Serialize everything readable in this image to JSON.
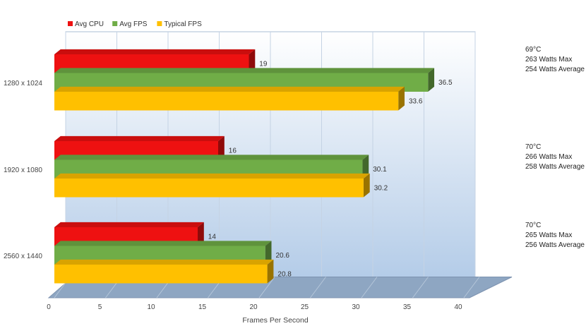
{
  "chart_data": {
    "type": "bar",
    "orientation": "horizontal",
    "categories": [
      "1280 x 1024",
      "1920 x 1080",
      "2560 x 1440"
    ],
    "series": [
      {
        "name": "Avg CPU",
        "color": "#ee1111",
        "values": [
          19,
          16,
          14
        ]
      },
      {
        "name": "Avg FPS",
        "color": "#70ad47",
        "values": [
          36.5,
          30.1,
          20.6
        ]
      },
      {
        "name": "Typical FPS",
        "color": "#ffc000",
        "values": [
          33.6,
          30.2,
          20.8
        ]
      }
    ],
    "data_labels": [
      [
        "19",
        "16",
        "14"
      ],
      [
        "36.5",
        "30.1",
        "20.6"
      ],
      [
        "33.6",
        "30.2",
        "20.8"
      ]
    ],
    "xlabel": "Frames Per Second",
    "xlim": [
      0,
      40
    ],
    "xticks": [
      0,
      5,
      10,
      15,
      20,
      25,
      30,
      35,
      40
    ],
    "grid": true,
    "legend_position": "top-left",
    "annotations": [
      [
        "69°C",
        "263 Watts Max",
        "254 Watts Average"
      ],
      [
        "70°C",
        "266 Watts Max",
        "258 Watts Average"
      ],
      [
        "70°C",
        "265 Watts Max",
        "256 Watts Average"
      ]
    ],
    "style": "3d",
    "plot_background_top": "#ffffff",
    "plot_background_bottom": "#b4cce8",
    "floor_color": "#8ea6c2"
  }
}
